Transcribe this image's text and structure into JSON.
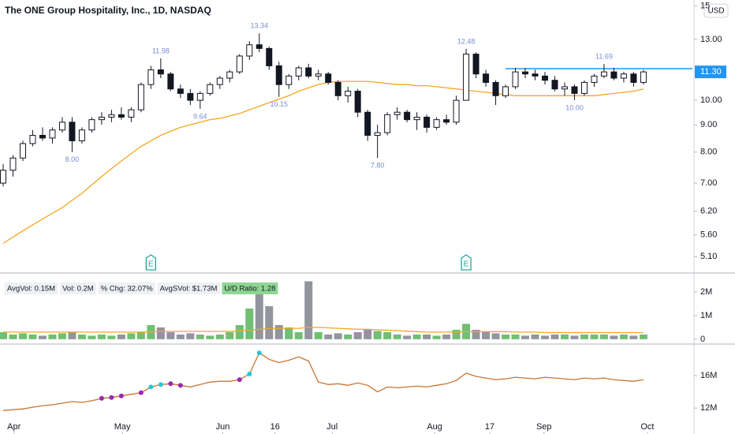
{
  "chart_data": [
    {
      "type": "candlestick",
      "title": "The ONE Group Hospitality, Inc., 1D, NASDAQ",
      "currency": "USD",
      "log_scale": true,
      "ylim": [
        4.77,
        15.4
      ],
      "yticks": [
        15,
        {
          "value": 13,
          "label": "13.00"
        },
        {
          "value": 10,
          "label": "10.00"
        },
        {
          "value": 9,
          "label": "9.00"
        },
        {
          "value": 8,
          "label": "8.00"
        },
        {
          "value": 7,
          "label": "7.00"
        },
        {
          "value": 6.2,
          "label": "6.20"
        },
        {
          "value": 5.6,
          "label": "5.60"
        },
        {
          "value": 5.1,
          "label": "5.10"
        }
      ],
      "xlim": [
        -0.32,
        69.97
      ],
      "up_color": "#ffffff",
      "down_color": "#131722",
      "candles": [
        [
          7.0,
          7.6,
          6.9,
          7.4
        ],
        [
          7.4,
          7.9,
          7.2,
          7.8
        ],
        [
          7.8,
          8.4,
          7.7,
          8.3
        ],
        [
          8.3,
          8.8,
          8.2,
          8.6
        ],
        [
          8.6,
          8.9,
          8.4,
          8.5
        ],
        [
          8.5,
          8.9,
          8.3,
          8.8
        ],
        [
          8.8,
          9.3,
          8.7,
          9.1
        ],
        [
          9.1,
          9.3,
          8.0,
          8.4
        ],
        [
          8.4,
          8.9,
          8.3,
          8.8
        ],
        [
          8.8,
          9.3,
          8.7,
          9.2
        ],
        [
          9.2,
          9.5,
          9.0,
          9.3
        ],
        [
          9.3,
          9.6,
          9.1,
          9.4
        ],
        [
          9.4,
          9.7,
          9.2,
          9.3
        ],
        [
          9.3,
          9.7,
          9.1,
          9.6
        ],
        [
          9.6,
          10.8,
          9.5,
          10.7
        ],
        [
          10.7,
          11.6,
          10.5,
          11.4
        ],
        [
          11.4,
          11.98,
          11.0,
          11.2
        ],
        [
          11.2,
          11.3,
          10.4,
          10.5
        ],
        [
          10.5,
          10.7,
          10.1,
          10.3
        ],
        [
          10.3,
          10.5,
          9.8,
          10.0
        ],
        [
          10.0,
          10.4,
          9.64,
          10.3
        ],
        [
          10.3,
          10.8,
          10.2,
          10.7
        ],
        [
          10.7,
          11.1,
          10.5,
          11.0
        ],
        [
          11.0,
          11.4,
          10.8,
          11.3
        ],
        [
          11.3,
          12.2,
          11.2,
          12.1
        ],
        [
          12.1,
          12.9,
          11.9,
          12.7
        ],
        [
          12.7,
          13.34,
          12.3,
          12.5
        ],
        [
          12.5,
          12.6,
          11.4,
          11.6
        ],
        [
          11.6,
          11.8,
          10.15,
          10.7
        ],
        [
          10.7,
          11.2,
          10.5,
          11.1
        ],
        [
          11.1,
          11.6,
          10.9,
          11.5
        ],
        [
          11.5,
          11.7,
          11.0,
          11.1
        ],
        [
          11.1,
          11.4,
          10.9,
          11.2
        ],
        [
          11.2,
          11.3,
          10.7,
          10.8
        ],
        [
          10.8,
          10.9,
          10.0,
          10.2
        ],
        [
          10.2,
          10.6,
          9.9,
          10.4
        ],
        [
          10.4,
          10.5,
          9.3,
          9.5
        ],
        [
          9.5,
          9.6,
          8.4,
          8.6
        ],
        [
          8.6,
          9.0,
          7.8,
          8.7
        ],
        [
          8.7,
          9.5,
          8.6,
          9.4
        ],
        [
          9.4,
          9.7,
          9.2,
          9.5
        ],
        [
          9.5,
          9.6,
          9.1,
          9.2
        ],
        [
          9.2,
          9.5,
          8.8,
          9.3
        ],
        [
          9.3,
          9.4,
          8.7,
          8.9
        ],
        [
          8.9,
          9.3,
          8.8,
          9.2
        ],
        [
          9.2,
          9.4,
          9.0,
          9.1
        ],
        [
          9.1,
          10.2,
          9.0,
          10.0
        ],
        [
          10.0,
          12.48,
          10.0,
          12.2
        ],
        [
          12.2,
          12.3,
          11.0,
          11.2
        ],
        [
          11.2,
          11.4,
          10.6,
          10.8
        ],
        [
          10.8,
          10.9,
          9.8,
          10.2
        ],
        [
          10.2,
          10.7,
          10.1,
          10.6
        ],
        [
          10.6,
          11.5,
          10.5,
          11.3
        ],
        [
          11.3,
          11.5,
          11.0,
          11.2
        ],
        [
          11.2,
          11.4,
          10.9,
          11.1
        ],
        [
          11.1,
          11.3,
          10.7,
          10.9
        ],
        [
          10.9,
          11.1,
          10.4,
          10.5
        ],
        [
          10.5,
          10.8,
          10.2,
          10.6
        ],
        [
          10.6,
          10.7,
          10.0,
          10.3
        ],
        [
          10.3,
          10.9,
          10.2,
          10.8
        ],
        [
          10.8,
          11.2,
          10.6,
          11.1
        ],
        [
          11.1,
          11.69,
          11.0,
          11.3
        ],
        [
          11.3,
          11.5,
          10.9,
          11.0
        ],
        [
          11.0,
          11.3,
          10.8,
          11.2
        ],
        [
          11.2,
          11.3,
          10.6,
          10.8
        ],
        [
          10.8,
          11.4,
          10.7,
          11.3
        ]
      ],
      "moving_average": {
        "color": "#f5a623",
        "values": [
          5.4,
          5.55,
          5.7,
          5.85,
          6.0,
          6.15,
          6.3,
          6.5,
          6.7,
          6.95,
          7.2,
          7.45,
          7.7,
          7.95,
          8.2,
          8.4,
          8.6,
          8.75,
          8.9,
          9.0,
          9.1,
          9.2,
          9.25,
          9.35,
          9.45,
          9.6,
          9.75,
          9.9,
          10.05,
          10.2,
          10.4,
          10.55,
          10.7,
          10.8,
          10.85,
          10.85,
          10.85,
          10.85,
          10.8,
          10.75,
          10.7,
          10.7,
          10.65,
          10.65,
          10.6,
          10.55,
          10.5,
          10.45,
          10.4,
          10.35,
          10.3,
          10.25,
          10.2,
          10.2,
          10.2,
          10.2,
          10.2,
          10.2,
          10.2,
          10.2,
          10.2,
          10.25,
          10.3,
          10.35,
          10.4,
          10.5
        ]
      },
      "pivots": [
        {
          "index": 7,
          "value": 8.0,
          "label": "8.00",
          "side": "low"
        },
        {
          "index": 16,
          "value": 11.98,
          "label": "11.98",
          "side": "high"
        },
        {
          "index": 20,
          "value": 9.64,
          "label": "9.64",
          "side": "low"
        },
        {
          "index": 26,
          "value": 13.34,
          "label": "13.34",
          "side": "high"
        },
        {
          "index": 28,
          "value": 10.15,
          "label": "10.15",
          "side": "low"
        },
        {
          "index": 38,
          "value": 7.8,
          "label": "7.80",
          "side": "low"
        },
        {
          "index": 47,
          "value": 12.48,
          "label": "12.48",
          "side": "high"
        },
        {
          "index": 58,
          "value": 10.0,
          "label": "10.00",
          "side": "low"
        },
        {
          "index": 61,
          "value": 11.69,
          "label": "11.69",
          "side": "high"
        }
      ],
      "resistance": {
        "value": 11.46,
        "start": 51,
        "color": "#2196f3"
      },
      "last_price": {
        "value": 11.3,
        "label": "11.30",
        "color": "#2196f3"
      },
      "earnings": {
        "label": "E",
        "indices": [
          15,
          47
        ],
        "color": "#26a69a"
      }
    },
    {
      "type": "volume",
      "ylim": [
        -0.07,
        2.6
      ],
      "yticks": [
        {
          "value": 2,
          "label": "2M"
        },
        {
          "value": 1,
          "label": "1M"
        },
        0
      ],
      "xlim": [
        -0.32,
        69.97
      ],
      "up_color": "#4caf50",
      "down_color": "#787b86",
      "info": [
        "AvgVol: 0.15M",
        "Vol: 0.2M",
        "% Chg: 32.07%",
        "AvgSVol: $1.73M",
        "U/D Ratio: 1.28"
      ],
      "values": [
        0.3,
        0.2,
        0.25,
        0.2,
        0.15,
        0.2,
        0.25,
        0.3,
        0.2,
        0.15,
        0.2,
        0.15,
        0.2,
        0.25,
        0.3,
        0.6,
        0.5,
        0.3,
        0.2,
        0.25,
        0.2,
        0.15,
        0.2,
        0.3,
        0.6,
        1.3,
        2.0,
        1.4,
        0.6,
        0.5,
        0.3,
        2.45,
        0.3,
        0.2,
        0.25,
        0.2,
        0.3,
        0.4,
        0.35,
        0.3,
        0.2,
        0.15,
        0.2,
        0.2,
        0.15,
        0.2,
        0.4,
        0.65,
        0.4,
        0.3,
        0.25,
        0.2,
        0.2,
        0.15,
        0.2,
        0.15,
        0.2,
        0.2,
        0.15,
        0.2,
        0.2,
        0.2,
        0.15,
        0.2,
        0.15,
        0.2
      ],
      "ma": {
        "color": "#f5a623",
        "values": [
          0.3,
          0.3,
          0.3,
          0.3,
          0.3,
          0.3,
          0.3,
          0.3,
          0.3,
          0.3,
          0.3,
          0.3,
          0.3,
          0.3,
          0.3,
          0.32,
          0.33,
          0.33,
          0.33,
          0.33,
          0.33,
          0.33,
          0.33,
          0.33,
          0.35,
          0.38,
          0.42,
          0.45,
          0.46,
          0.46,
          0.46,
          0.5,
          0.5,
          0.48,
          0.46,
          0.44,
          0.42,
          0.42,
          0.4,
          0.38,
          0.36,
          0.34,
          0.32,
          0.3,
          0.3,
          0.3,
          0.3,
          0.32,
          0.32,
          0.32,
          0.32,
          0.32,
          0.3,
          0.3,
          0.3,
          0.28,
          0.28,
          0.28,
          0.28,
          0.28,
          0.28,
          0.28,
          0.28,
          0.28,
          0.28,
          0.28
        ]
      }
    },
    {
      "type": "line",
      "color": "#c87533",
      "ylim": [
        9.0,
        19.5
      ],
      "yticks": [
        {
          "value": 16,
          "label": "16M"
        },
        {
          "value": 12,
          "label": "12M"
        }
      ],
      "xlim": [
        -0.32,
        69.97
      ],
      "xticks": [
        {
          "value": 1.1,
          "label": "Apr"
        },
        {
          "value": 12.1,
          "label": "May"
        },
        {
          "value": 22.3,
          "label": "Jun"
        },
        {
          "value": 27.6,
          "label": "16"
        },
        {
          "value": 33.4,
          "label": "Jul"
        },
        {
          "value": 43.8,
          "label": "Aug"
        },
        {
          "value": 49.4,
          "label": "17"
        },
        {
          "value": 54.9,
          "label": "Sep"
        },
        {
          "value": 65.4,
          "label": "Oct"
        }
      ],
      "values": [
        11.7,
        11.8,
        11.9,
        12.1,
        12.3,
        12.4,
        12.6,
        12.8,
        12.7,
        12.9,
        13.2,
        13.3,
        13.5,
        13.7,
        13.9,
        14.6,
        14.9,
        15.0,
        14.8,
        14.6,
        14.9,
        15.2,
        15.3,
        15.3,
        15.5,
        16.2,
        18.8,
        18.0,
        17.6,
        17.9,
        18.3,
        17.8,
        15.2,
        14.9,
        15.0,
        14.8,
        15.1,
        14.8,
        14.0,
        14.6,
        14.5,
        14.6,
        14.7,
        14.6,
        14.8,
        15.0,
        15.4,
        16.3,
        15.9,
        15.7,
        15.5,
        15.6,
        15.8,
        15.7,
        15.6,
        15.8,
        15.7,
        15.6,
        15.5,
        15.7,
        15.6,
        15.7,
        15.5,
        15.4,
        15.3,
        15.5
      ],
      "dots": [
        {
          "index": 10,
          "color": "#9c27b0"
        },
        {
          "index": 11,
          "color": "#9c27b0"
        },
        {
          "index": 12,
          "color": "#9c27b0"
        },
        {
          "index": 14,
          "color": "#9c27b0"
        },
        {
          "index": 15,
          "color": "#26c6da"
        },
        {
          "index": 16,
          "color": "#26c6da"
        },
        {
          "index": 17,
          "color": "#9c27b0"
        },
        {
          "index": 18,
          "color": "#9c27b0"
        },
        {
          "index": 24,
          "color": "#9c27b0"
        },
        {
          "index": 25,
          "color": "#26c6da"
        },
        {
          "index": 26,
          "color": "#26c6da"
        }
      ]
    }
  ]
}
